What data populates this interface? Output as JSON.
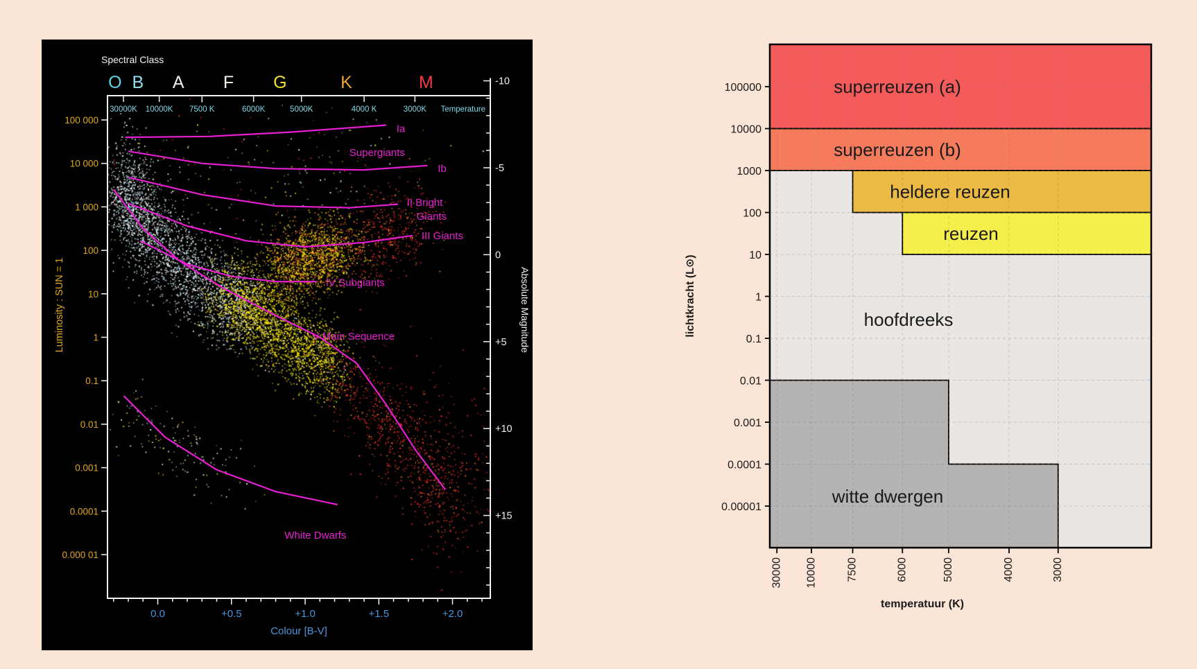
{
  "page": {
    "background": "#fbe5d6"
  },
  "chart_data": [
    {
      "id": "hr_diagram",
      "type": "scatter",
      "panel_bg": "#000000",
      "line_color": "#e81ed2",
      "top_axis": {
        "title": "Spectral Class",
        "title_color": "#f2f2f2",
        "axis_title": "Temperature",
        "tick_color": "#7fd8e8",
        "classes": [
          {
            "letter": "O",
            "bv": -0.29,
            "color": "#5fd3e7"
          },
          {
            "letter": "B",
            "bv": -0.135,
            "color": "#8fe1ef"
          },
          {
            "letter": "A",
            "bv": 0.14,
            "color": "#eceff0"
          },
          {
            "letter": "F",
            "bv": 0.48,
            "color": "#f5f4ea"
          },
          {
            "letter": "G",
            "bv": 0.83,
            "color": "#f2e32b"
          },
          {
            "letter": "K",
            "bv": 1.28,
            "color": "#f0a22e"
          },
          {
            "letter": "M",
            "bv": 1.82,
            "color": "#f03a44"
          }
        ],
        "temperature_ticks": [
          {
            "label": "30000K",
            "bv": -0.233
          },
          {
            "label": "10000K",
            "bv": 0.01
          },
          {
            "label": "7500 K",
            "bv": 0.3
          },
          {
            "label": "6000K",
            "bv": 0.65
          },
          {
            "label": "5000K",
            "bv": 0.975
          },
          {
            "label": "4000 K",
            "bv": 1.4
          },
          {
            "label": "3000K",
            "bv": 1.745
          }
        ]
      },
      "left_axis": {
        "title": "Luminosity : SUN = 1",
        "color": "#e3a71d",
        "ticks": [
          {
            "label": "100 000",
            "logL": 5
          },
          {
            "label": "10 000",
            "logL": 4
          },
          {
            "label": "1 000",
            "logL": 3
          },
          {
            "label": "100",
            "logL": 2
          },
          {
            "label": "10",
            "logL": 1
          },
          {
            "label": "1",
            "logL": 0
          },
          {
            "label": "0.1",
            "logL": -1
          },
          {
            "label": "0.01",
            "logL": -2
          },
          {
            "label": "0.001",
            "logL": -3
          },
          {
            "label": "0.0001",
            "logL": -4
          },
          {
            "label": "0.000 01",
            "logL": -5
          }
        ]
      },
      "right_axis": {
        "title": "Absolute Magnitude",
        "color": "#f2f2f2",
        "ticks": [
          {
            "label": "-10",
            "mag": -10
          },
          {
            "label": "-5",
            "mag": -5
          },
          {
            "label": "0",
            "mag": 0
          },
          {
            "label": "+5",
            "mag": 5
          },
          {
            "label": "+10",
            "mag": 10
          },
          {
            "label": "+15",
            "mag": 15
          }
        ]
      },
      "bottom_axis": {
        "title": "Colour [B-V]",
        "color": "#4b96dd",
        "ticks": [
          {
            "label": "0.0",
            "bv": 0.0
          },
          {
            "label": "+0.5",
            "bv": 0.5
          },
          {
            "label": "+1.0",
            "bv": 1.0
          },
          {
            "label": "+1.5",
            "bv": 1.5
          },
          {
            "label": "+2.0",
            "bv": 2.0
          }
        ]
      },
      "luminosity_classes": [
        {
          "name": "Ia",
          "label_lines": [
            "Ia"
          ],
          "points": [
            [
              -0.22,
              4.6
            ],
            [
              0.35,
              4.62
            ],
            [
              0.9,
              4.72
            ],
            [
              1.55,
              4.88
            ]
          ],
          "label_at": [
            1.62,
            4.8
          ]
        },
        {
          "name": "Supergiants",
          "label_lines": [
            "Supergiants"
          ],
          "points": [],
          "label_at": [
            1.3,
            4.25
          ]
        },
        {
          "name": "Ib",
          "label_lines": [
            "Ib"
          ],
          "points": [
            [
              -0.2,
              4.28
            ],
            [
              0.3,
              4.0
            ],
            [
              0.8,
              3.88
            ],
            [
              1.4,
              3.85
            ],
            [
              1.83,
              3.95
            ]
          ],
          "label_at": [
            1.9,
            3.88
          ]
        },
        {
          "name": "II",
          "label_lines": [
            "II Bright",
            "Giants"
          ],
          "points": [
            [
              -0.2,
              3.68
            ],
            [
              0.3,
              3.28
            ],
            [
              0.8,
              3.02
            ],
            [
              1.3,
              2.98
            ],
            [
              1.63,
              3.06
            ]
          ],
          "label_at": [
            1.69,
            3.1
          ]
        },
        {
          "name": "III",
          "label_lines": [
            "III Giants"
          ],
          "points": [
            [
              -0.2,
              3.08
            ],
            [
              0.2,
              2.56
            ],
            [
              0.6,
              2.22
            ],
            [
              1.0,
              2.08
            ],
            [
              1.4,
              2.18
            ],
            [
              1.73,
              2.34
            ]
          ],
          "label_at": [
            1.79,
            2.34
          ]
        },
        {
          "name": "IV",
          "label_lines": [
            "IV Subgiants"
          ],
          "points": [
            [
              -0.12,
              2.22
            ],
            [
              0.2,
              1.68
            ],
            [
              0.5,
              1.4
            ],
            [
              0.8,
              1.28
            ],
            [
              1.08,
              1.28
            ]
          ],
          "label_at": [
            1.14,
            1.26
          ]
        },
        {
          "name": "V",
          "label_lines": [
            "V Main Sequence"
          ],
          "points": [
            [
              -0.3,
              3.4
            ],
            [
              -0.1,
              2.5
            ],
            [
              0.15,
              1.75
            ],
            [
              0.45,
              1.12
            ],
            [
              0.8,
              0.5
            ],
            [
              1.1,
              0.0
            ],
            [
              1.35,
              -0.6
            ],
            [
              1.55,
              -1.55
            ],
            [
              1.75,
              -2.6
            ],
            [
              1.95,
              -3.5
            ]
          ],
          "label_at": [
            1.05,
            0.02
          ]
        },
        {
          "name": "WD",
          "label_lines": [
            "White Dwarfs"
          ],
          "points": [
            [
              -0.23,
              -1.35
            ],
            [
              0.05,
              -2.3
            ],
            [
              0.4,
              -3.05
            ],
            [
              0.8,
              -3.55
            ],
            [
              1.22,
              -3.85
            ]
          ],
          "label_at": [
            0.86,
            -4.55
          ]
        }
      ],
      "scatter_clusters": [
        {
          "name": "upper-main-sequence",
          "n": 2400,
          "spread_bv": 0.09,
          "spread_logL": 0.5,
          "spine": [
            [
              -0.27,
              3.5
            ],
            [
              -0.15,
              2.9
            ],
            [
              0.0,
              2.2
            ],
            [
              0.2,
              1.5
            ],
            [
              0.42,
              0.95
            ],
            [
              0.6,
              0.6
            ]
          ],
          "colors": [
            [
              "#ffffff",
              0.62
            ],
            [
              "#d8f2f8",
              0.22
            ],
            [
              "#9fe2f2",
              0.16
            ]
          ]
        },
        {
          "name": "mid-main-sequence-yellow",
          "n": 2600,
          "spread_bv": 0.09,
          "spread_logL": 0.45,
          "spine": [
            [
              0.45,
              1.05
            ],
            [
              0.62,
              0.65
            ],
            [
              0.8,
              0.25
            ],
            [
              1.0,
              -0.25
            ],
            [
              1.18,
              -0.7
            ]
          ],
          "colors": [
            [
              "#ffee00",
              0.8
            ],
            [
              "#ffd84a",
              0.12
            ],
            [
              "#ffffff",
              0.08
            ]
          ]
        },
        {
          "name": "lower-main-sequence-red",
          "n": 750,
          "spread_bv": 0.1,
          "spread_logL": 0.55,
          "spine": [
            [
              1.22,
              -0.85
            ],
            [
              1.45,
              -1.6
            ],
            [
              1.65,
              -2.4
            ],
            [
              1.88,
              -3.3
            ],
            [
              2.05,
              -4.1
            ]
          ],
          "colors": [
            [
              "#ff2b2b",
              0.72
            ],
            [
              "#ff7a2a",
              0.28
            ]
          ]
        },
        {
          "name": "giant-clump",
          "n": 1700,
          "spread_bv": 0.1,
          "spread_logL": 0.42,
          "spine": [
            [
              0.82,
              1.6
            ],
            [
              0.95,
              1.75
            ],
            [
              1.1,
              1.9
            ],
            [
              1.25,
              2.05
            ]
          ],
          "colors": [
            [
              "#ffee00",
              0.5
            ],
            [
              "#ffb028",
              0.3
            ],
            [
              "#ff5a2a",
              0.2
            ]
          ]
        },
        {
          "name": "red-giants",
          "n": 450,
          "spread_bv": 0.11,
          "spread_logL": 0.5,
          "spine": [
            [
              1.35,
              2.15
            ],
            [
              1.55,
              2.4
            ],
            [
              1.75,
              2.7
            ]
          ],
          "colors": [
            [
              "#ff2b2b",
              0.75
            ],
            [
              "#ff8c2a",
              0.25
            ]
          ]
        },
        {
          "name": "supergiants-sparse",
          "n": 230,
          "spread_bv": 0.45,
          "spread_logL": 0.75,
          "spine": [
            [
              -0.05,
              4.2
            ],
            [
              0.5,
              3.9
            ],
            [
              1.0,
              3.7
            ],
            [
              1.5,
              3.9
            ]
          ],
          "colors": [
            [
              "#ffffff",
              0.4
            ],
            [
              "#ffee00",
              0.2
            ],
            [
              "#ff8c2a",
              0.15
            ],
            [
              "#ff2b2b",
              0.15
            ],
            [
              "#a8e4f0",
              0.1
            ]
          ]
        },
        {
          "name": "hot-blue-stars",
          "n": 260,
          "spread_bv": 0.06,
          "spread_logL": 0.8,
          "spine": [
            [
              -0.22,
              4.0
            ],
            [
              -0.18,
              3.2
            ],
            [
              -0.12,
              2.4
            ]
          ],
          "colors": [
            [
              "#a8e4f0",
              0.5
            ],
            [
              "#ffffff",
              0.5
            ]
          ]
        },
        {
          "name": "white-dwarfs",
          "n": 140,
          "spread_bv": 0.1,
          "spread_logL": 0.35,
          "spine": [
            [
              -0.2,
              -1.6
            ],
            [
              0.0,
              -2.2
            ],
            [
              0.3,
              -2.85
            ],
            [
              0.6,
              -3.3
            ]
          ],
          "colors": [
            [
              "#ffffff",
              0.78
            ],
            [
              "#ffee00",
              0.12
            ],
            [
              "#ffb028",
              0.1
            ]
          ]
        },
        {
          "name": "faint-red-sparse",
          "n": 160,
          "spread_bv": 0.18,
          "spread_logL": 0.9,
          "spine": [
            [
              1.6,
              -1.2
            ],
            [
              1.85,
              -2.5
            ],
            [
              2.1,
              -3.8
            ]
          ],
          "colors": [
            [
              "#ff2b2b",
              1
            ]
          ]
        }
      ]
    },
    {
      "id": "luminosity_regions",
      "type": "area",
      "xlabel": "temperatuur (K)",
      "ylabel": "lichtkracht (L⊙)",
      "x_ticks": [
        {
          "label": "30000",
          "bv": -0.233
        },
        {
          "label": "10000",
          "bv": 0.01
        },
        {
          "label": "7500",
          "bv": 0.3
        },
        {
          "label": "6000",
          "bv": 0.65
        },
        {
          "label": "5000",
          "bv": 0.975
        },
        {
          "label": "4000",
          "bv": 1.4
        },
        {
          "label": "3000",
          "bv": 1.745
        }
      ],
      "y_ticks": [
        {
          "label": "100000",
          "logL": 5
        },
        {
          "label": "10000",
          "logL": 4
        },
        {
          "label": "1000",
          "logL": 3
        },
        {
          "label": "100",
          "logL": 2
        },
        {
          "label": "10",
          "logL": 1
        },
        {
          "label": "1",
          "logL": 0
        },
        {
          "label": "0.1",
          "logL": -1
        },
        {
          "label": "0.01",
          "logL": -2
        },
        {
          "label": "0.001",
          "logL": -3
        },
        {
          "label": "0.0001",
          "logL": -4
        },
        {
          "label": "0.00001",
          "logL": -5
        }
      ],
      "background_region": {
        "label": "hoofdreeks",
        "color": "#e9e6e3",
        "label_at_logL": -0.55
      },
      "regions": [
        {
          "label": "superreuzen (a)",
          "color": "#f55b5b",
          "from_bv": "left",
          "L_top": "top",
          "L_bottom": 10000
        },
        {
          "label": "superreuzen (b)",
          "color": "#f57b5c",
          "from_bv": "left",
          "L_top": 10000,
          "L_bottom": 1000
        },
        {
          "label": "heldere reuzen",
          "color": "#eaba45",
          "from_bv": 0.3,
          "L_top": 1000,
          "L_bottom": 100
        },
        {
          "label": "reuzen",
          "color": "#f4ef4a",
          "from_bv": 0.65,
          "L_top": 100,
          "L_bottom": 10
        }
      ],
      "white_dwarf_region": {
        "label": "witte dwergen",
        "color": "#b6b4b2",
        "steps": [
          {
            "from_bv": "left",
            "to_bv": 0.975,
            "L_top": 0.01
          },
          {
            "from_bv": 0.975,
            "to_bv": 1.745,
            "L_top": 0.0001
          }
        ]
      }
    }
  ]
}
